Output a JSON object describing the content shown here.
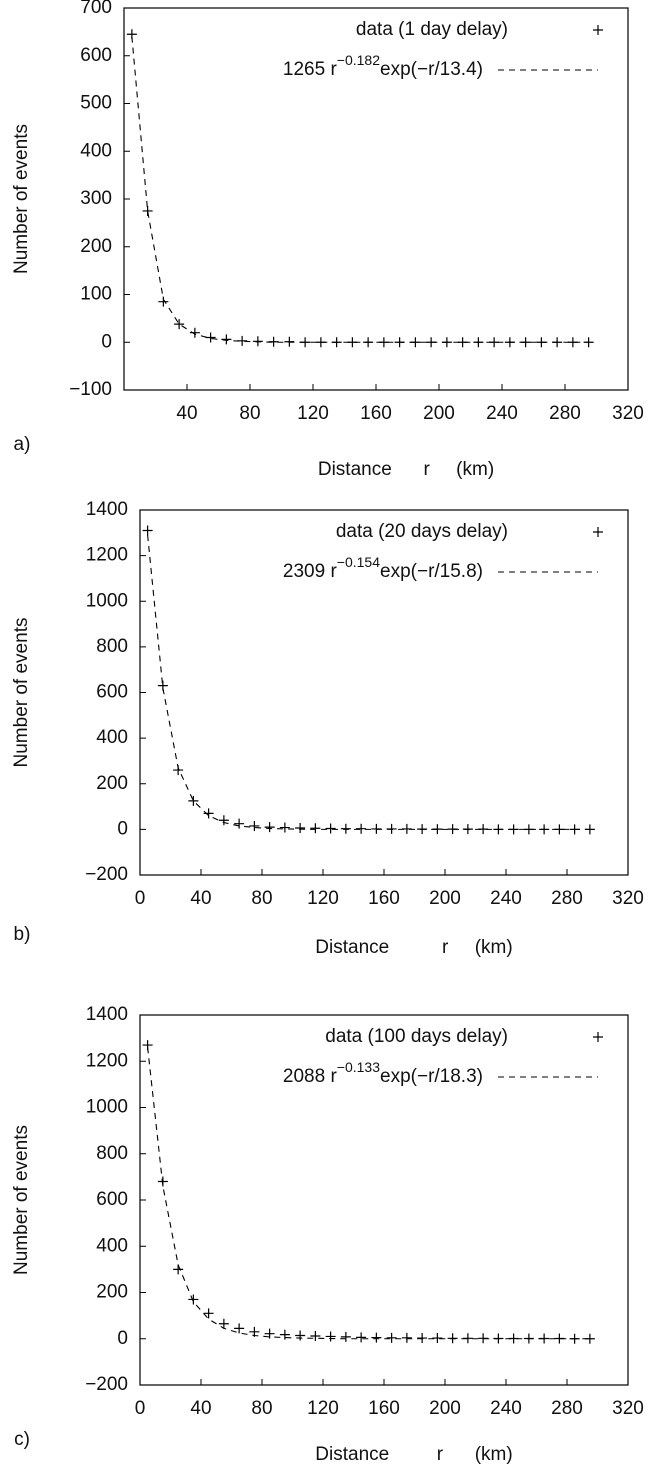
{
  "chart_data": [
    {
      "type": "scatter",
      "panel_label": "a)",
      "x_label": "Distance      r     (km)",
      "y_label": "Number of events",
      "x": [
        5,
        15,
        25,
        35,
        45,
        55,
        65,
        75,
        85,
        95,
        105,
        115,
        125,
        135,
        145,
        155,
        165,
        175,
        185,
        195,
        205,
        215,
        225,
        235,
        245,
        255,
        265,
        275,
        285,
        295
      ],
      "series": [
        {
          "name": "data (1 day delay)",
          "style": "marker",
          "color": "#000000",
          "values": [
            645,
            275,
            85,
            38,
            20,
            10,
            6,
            3,
            2,
            1,
            1,
            0,
            0,
            0,
            0,
            0,
            0,
            0,
            0,
            0,
            0,
            0,
            0,
            0,
            0,
            0,
            0,
            0,
            0,
            0
          ]
        },
        {
          "name": [
            "1265 r",
            "−0.182",
            "exp(−r/13.4)"
          ],
          "style": "dashed",
          "color": "#000000",
          "values": [
            640,
            275,
            90,
            38,
            17,
            8,
            4,
            2,
            1,
            0,
            0,
            0,
            0,
            0,
            0,
            0,
            0,
            0,
            0,
            0,
            0,
            0,
            0,
            0,
            0,
            0,
            0,
            0,
            0,
            0
          ]
        }
      ],
      "xlim": [
        0,
        320
      ],
      "xticks": [
        40,
        80,
        120,
        160,
        200,
        240,
        280,
        320
      ],
      "ylim": [
        -100,
        700
      ],
      "yticks": [
        {
          "value": -100,
          "label": "−100"
        },
        0,
        100,
        200,
        300,
        400,
        500,
        600,
        700
      ]
    },
    {
      "type": "scatter",
      "panel_label": "b)",
      "x_label": "Distance          r     (km)",
      "y_label": "Number of events",
      "x": [
        5,
        15,
        25,
        35,
        45,
        55,
        65,
        75,
        85,
        95,
        105,
        115,
        125,
        135,
        145,
        155,
        165,
        175,
        185,
        195,
        205,
        215,
        225,
        235,
        245,
        255,
        265,
        275,
        285,
        295
      ],
      "series": [
        {
          "name": "data (20 days delay)",
          "style": "marker",
          "color": "#000000",
          "values": [
            1310,
            630,
            260,
            125,
            70,
            40,
            25,
            15,
            10,
            8,
            6,
            5,
            4,
            3,
            3,
            2,
            2,
            2,
            1,
            1,
            1,
            1,
            1,
            0,
            0,
            0,
            0,
            0,
            0,
            0
          ]
        },
        {
          "name": [
            "2309 r",
            "−0.154",
            "exp(−r/15.8)"
          ],
          "style": "dashed",
          "color": "#000000",
          "values": [
            1290,
            620,
            270,
            125,
            60,
            30,
            15,
            8,
            4,
            2,
            1,
            0,
            0,
            0,
            0,
            0,
            0,
            0,
            0,
            0,
            0,
            0,
            0,
            0,
            0,
            0,
            0,
            0,
            0,
            0
          ]
        }
      ],
      "xlim": [
        0,
        320
      ],
      "xticks": [
        0,
        40,
        80,
        120,
        160,
        200,
        240,
        280,
        320
      ],
      "ylim": [
        -200,
        1400
      ],
      "yticks": [
        {
          "value": -200,
          "label": "−200"
        },
        0,
        200,
        400,
        600,
        800,
        1000,
        1200,
        1400
      ]
    },
    {
      "type": "scatter",
      "panel_label": "c)",
      "x_label": "Distance         r      (km)",
      "y_label": "Number of events",
      "x": [
        5,
        15,
        25,
        35,
        45,
        55,
        65,
        75,
        85,
        95,
        105,
        115,
        125,
        135,
        145,
        155,
        165,
        175,
        185,
        195,
        205,
        215,
        225,
        235,
        245,
        255,
        265,
        275,
        285,
        295
      ],
      "series": [
        {
          "name": "data (100 days delay)",
          "style": "marker",
          "color": "#000000",
          "values": [
            1270,
            680,
            300,
            170,
            110,
            65,
            45,
            30,
            22,
            18,
            14,
            12,
            10,
            8,
            6,
            5,
            4,
            4,
            3,
            3,
            2,
            2,
            2,
            1,
            1,
            1,
            1,
            1,
            0,
            0
          ]
        },
        {
          "name": [
            "2088 r",
            "−0.133",
            "exp(−r/18.3)"
          ],
          "style": "dashed",
          "color": "#000000",
          "values": [
            1260,
            660,
            320,
            160,
            85,
            45,
            25,
            14,
            8,
            5,
            3,
            2,
            1,
            0,
            0,
            0,
            0,
            0,
            0,
            0,
            0,
            0,
            0,
            0,
            0,
            0,
            0,
            0,
            0,
            0
          ]
        }
      ],
      "xlim": [
        0,
        320
      ],
      "xticks": [
        0,
        40,
        80,
        120,
        160,
        200,
        240,
        280,
        320
      ],
      "ylim": [
        -200,
        1400
      ],
      "yticks": [
        {
          "value": -200,
          "label": "−200"
        },
        0,
        200,
        400,
        600,
        800,
        1000,
        1200,
        1400
      ]
    }
  ]
}
